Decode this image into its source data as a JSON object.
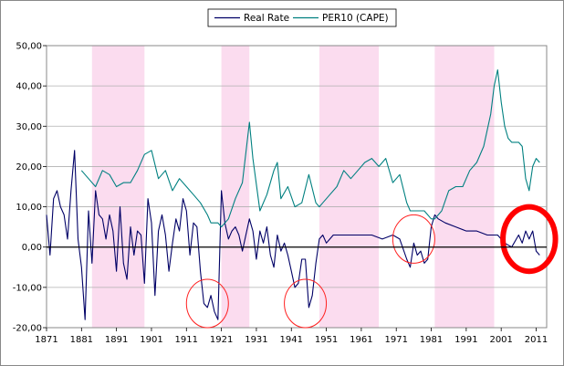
{
  "chart_data": {
    "type": "line",
    "title": "",
    "xlabel": "",
    "ylabel": "",
    "xlim": [
      1871,
      2014
    ],
    "ylim": [
      -20,
      50
    ],
    "x_ticks": [
      1871,
      1881,
      1891,
      1901,
      1911,
      1921,
      1931,
      1941,
      1951,
      1961,
      1971,
      1981,
      1991,
      2001,
      2011
    ],
    "y_ticks": [
      -20,
      -10,
      0,
      10,
      20,
      30,
      40,
      50
    ],
    "y_tick_labels": [
      "-20,00",
      "-10,00",
      "0,00",
      "10,00",
      "20,00",
      "30,00",
      "40,00",
      "50,00"
    ],
    "grid": "horizontal",
    "legend_position": "top-center",
    "shaded_periods": [
      [
        1884,
        1899
      ],
      [
        1921,
        1929
      ],
      [
        1949,
        1966
      ],
      [
        1982,
        1999
      ]
    ],
    "shade_color": "#fbdcef",
    "zero_line_color": "#000000",
    "series": [
      {
        "name": "Real Rate",
        "color": "#000066",
        "x": [
          1871,
          1872,
          1873,
          1874,
          1875,
          1876,
          1877,
          1878,
          1879,
          1880,
          1881,
          1882,
          1883,
          1884,
          1885,
          1886,
          1887,
          1888,
          1889,
          1890,
          1891,
          1892,
          1893,
          1894,
          1895,
          1896,
          1897,
          1898,
          1899,
          1900,
          1901,
          1902,
          1903,
          1904,
          1905,
          1906,
          1907,
          1908,
          1909,
          1910,
          1911,
          1912,
          1913,
          1914,
          1915,
          1916,
          1917,
          1918,
          1919,
          1920,
          1921,
          1922,
          1923,
          1924,
          1925,
          1926,
          1927,
          1928,
          1929,
          1930,
          1931,
          1932,
          1933,
          1934,
          1935,
          1936,
          1937,
          1938,
          1939,
          1940,
          1941,
          1942,
          1943,
          1944,
          1945,
          1946,
          1947,
          1948,
          1949,
          1950,
          1951,
          1952,
          1953,
          1955,
          1958,
          1961,
          1964,
          1967,
          1970,
          1972,
          1974,
          1975,
          1976,
          1977,
          1978,
          1979,
          1980,
          1981,
          1982,
          1983,
          1985,
          1988,
          1991,
          1994,
          1997,
          2000,
          2002,
          2004,
          2006,
          2007,
          2008,
          2009,
          2010,
          2011,
          2012
        ],
        "values": [
          8,
          -2,
          12,
          14,
          10,
          8,
          2,
          14,
          24,
          2,
          -5,
          -18,
          9,
          -4,
          14,
          8,
          7,
          2,
          8,
          4,
          -6,
          10,
          -4,
          -8,
          5,
          -2,
          4,
          3,
          -9,
          12,
          6,
          -12,
          4,
          8,
          3,
          -6,
          1,
          7,
          4,
          12,
          9,
          -2,
          6,
          5,
          -6,
          -14,
          -15,
          -12,
          -16,
          -18,
          14,
          6,
          2,
          4,
          5,
          3,
          -1,
          3,
          7,
          4,
          -3,
          4,
          1,
          5,
          -2,
          -5,
          3,
          -1,
          1,
          -2,
          -6,
          -10,
          -9,
          -3,
          -3,
          -15,
          -12,
          -4,
          2,
          3,
          1,
          2,
          3,
          3,
          3,
          3,
          3,
          2,
          3,
          2,
          -3,
          -5,
          1,
          -2,
          -1,
          -4,
          -3,
          5,
          8,
          7,
          6,
          5,
          4,
          4,
          3,
          3,
          1,
          0,
          3,
          1,
          4,
          2,
          4,
          -1,
          -2
        ]
      },
      {
        "name": "PER10 (CAPE)",
        "color": "#008080",
        "x": [
          1881,
          1883,
          1885,
          1887,
          1889,
          1891,
          1893,
          1895,
          1897,
          1899,
          1901,
          1903,
          1905,
          1907,
          1909,
          1911,
          1913,
          1915,
          1917,
          1918,
          1920,
          1921,
          1923,
          1925,
          1927,
          1929,
          1930,
          1932,
          1934,
          1936,
          1937,
          1938,
          1940,
          1942,
          1944,
          1946,
          1948,
          1949,
          1950,
          1952,
          1954,
          1956,
          1958,
          1960,
          1962,
          1964,
          1966,
          1968,
          1970,
          1972,
          1974,
          1975,
          1977,
          1979,
          1981,
          1982,
          1984,
          1986,
          1988,
          1990,
          1992,
          1994,
          1996,
          1998,
          1999,
          2000,
          2001,
          2002,
          2003,
          2004,
          2006,
          2007,
          2008,
          2009,
          2010,
          2011,
          2012
        ],
        "values": [
          19,
          17,
          15,
          19,
          18,
          15,
          16,
          16,
          19,
          23,
          24,
          17,
          19,
          14,
          17,
          15,
          13,
          11,
          8,
          6,
          6,
          5,
          7,
          12,
          16,
          31,
          22,
          9,
          13,
          19,
          21,
          12,
          15,
          10,
          11,
          18,
          11,
          10,
          11,
          13,
          15,
          19,
          17,
          19,
          21,
          22,
          20,
          22,
          16,
          18,
          11,
          9,
          9,
          9,
          7,
          7,
          9,
          14,
          15,
          15,
          19,
          21,
          25,
          33,
          40,
          44,
          36,
          30,
          27,
          26,
          26,
          25,
          17,
          14,
          20,
          22,
          21
        ]
      }
    ],
    "annotations": [
      {
        "type": "circle",
        "x": 1917,
        "y": -14,
        "rx": 6,
        "ry": 6,
        "color": "#ff2020",
        "width": 1
      },
      {
        "type": "circle",
        "x": 1945,
        "y": -14,
        "rx": 6,
        "ry": 6,
        "color": "#ff2020",
        "width": 1
      },
      {
        "type": "circle",
        "x": 1976,
        "y": 2,
        "rx": 6,
        "ry": 6,
        "color": "#ff2020",
        "width": 1
      },
      {
        "type": "circle",
        "x": 2009,
        "y": 2,
        "rx": 7.5,
        "ry": 8,
        "color": "#ff0000",
        "width": 6
      }
    ]
  }
}
